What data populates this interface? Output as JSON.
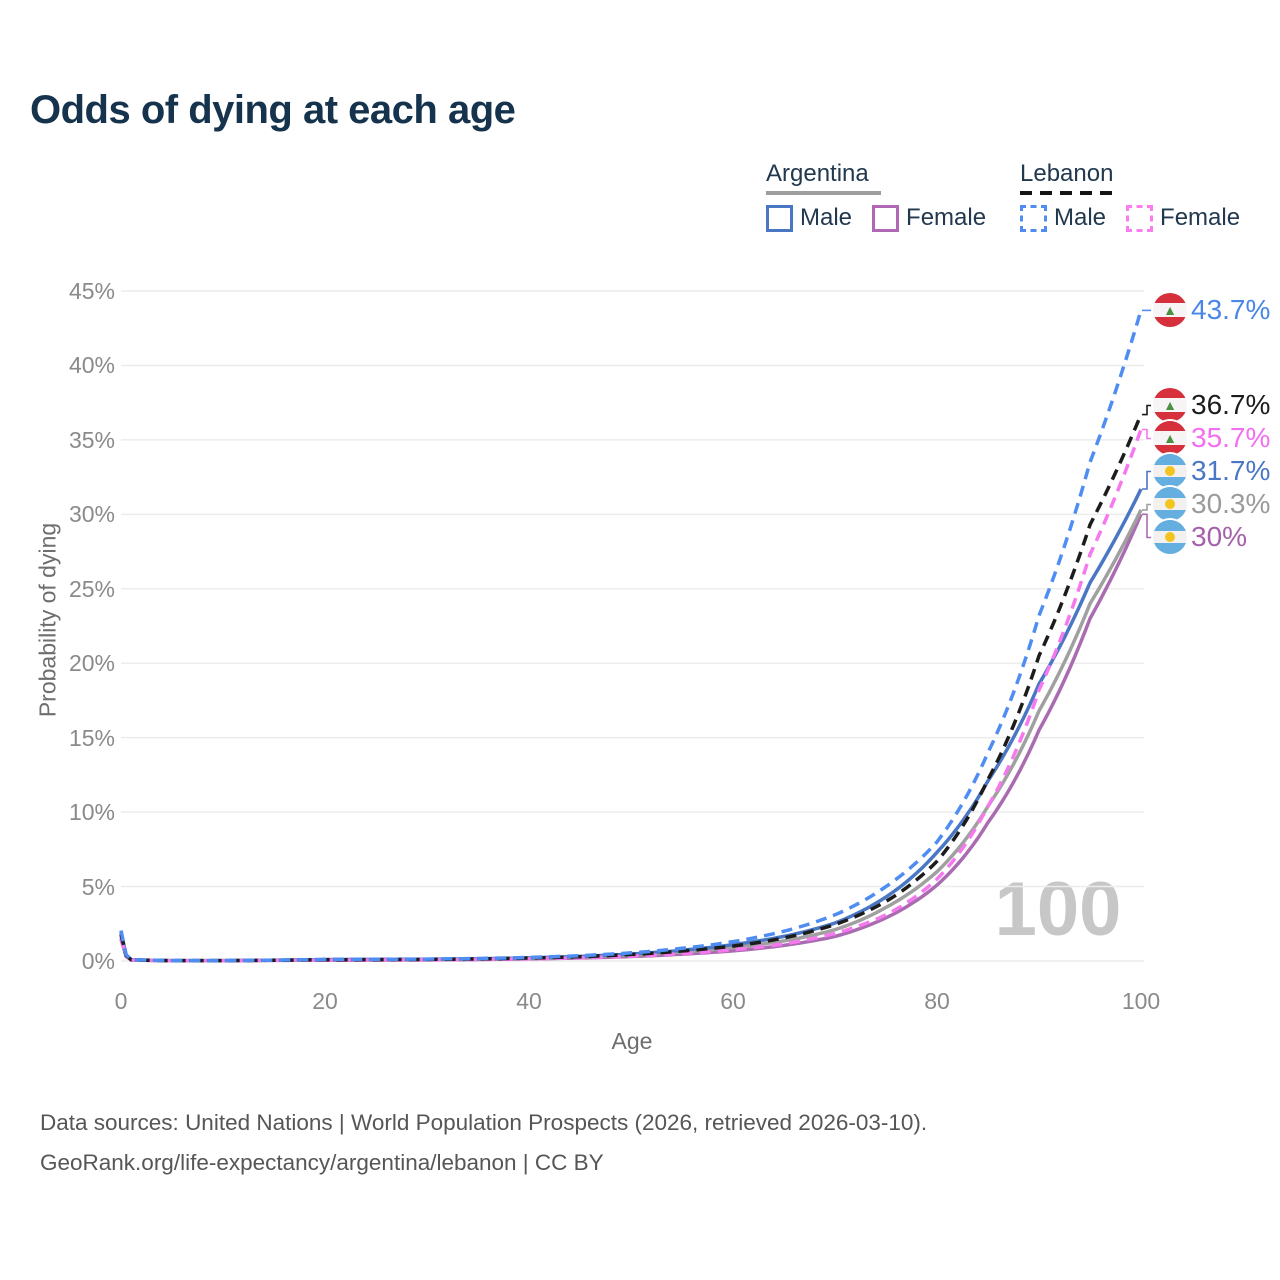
{
  "title": "Odds of dying at each age",
  "legend": {
    "groups": [
      {
        "label": "Argentina",
        "line_style": "solid",
        "line_color": "#9e9e9e",
        "items": [
          {
            "label": "Male",
            "color": "#4a77c4",
            "dash": false
          },
          {
            "label": "Female",
            "color": "#b068b4",
            "dash": false
          }
        ]
      },
      {
        "label": "Lebanon",
        "line_style": "dashed",
        "line_color": "#141414",
        "items": [
          {
            "label": "Male",
            "color": "#4f8df2",
            "dash": true
          },
          {
            "label": "Female",
            "color": "#fb7cee",
            "dash": true
          }
        ]
      }
    ]
  },
  "annotations": {
    "age_counter": "100"
  },
  "footer": {
    "line1": "Data sources: United Nations | World Population Prospects (2026, retrieved 2026-03-10).",
    "line2": "GeoRank.org/life-expectancy/argentina/lebanon | CC BY"
  },
  "chart_data": {
    "type": "line",
    "title": "Odds of dying at each age",
    "xlabel": "Age",
    "ylabel": "Probability of dying",
    "xlim": [
      0,
      100
    ],
    "ylim": [
      0,
      45
    ],
    "grid": "horizontal",
    "legend_position": "top-right",
    "x_ticks": [
      {
        "value": 0,
        "label": "0"
      },
      {
        "value": 20,
        "label": "20"
      },
      {
        "value": 40,
        "label": "40"
      },
      {
        "value": 60,
        "label": "60"
      },
      {
        "value": 80,
        "label": "80"
      },
      {
        "value": 100,
        "label": "100"
      }
    ],
    "y_ticks": [
      {
        "value": 0,
        "label": "0%"
      },
      {
        "value": 5,
        "label": "5%"
      },
      {
        "value": 10,
        "label": "10%"
      },
      {
        "value": 15,
        "label": "15%"
      },
      {
        "value": 20,
        "label": "20%"
      },
      {
        "value": 25,
        "label": "25%"
      },
      {
        "value": 30,
        "label": "30%"
      },
      {
        "value": 35,
        "label": "35%"
      },
      {
        "value": 40,
        "label": "40%"
      },
      {
        "value": 45,
        "label": "45%"
      }
    ],
    "x": [
      0,
      1,
      5,
      10,
      15,
      20,
      25,
      30,
      35,
      40,
      45,
      50,
      55,
      60,
      65,
      70,
      75,
      80,
      85,
      90,
      95,
      100
    ],
    "units": "percent probability of dying at each age",
    "series": [
      {
        "name": "Lebanon Male",
        "country": "Lebanon",
        "sex": "Male",
        "color": "#4f8df2",
        "dash": true,
        "flag": "lebanon",
        "end_label": "43.7%",
        "label_color": "#4a86e8",
        "values": [
          2.05,
          0.09,
          0.03,
          0.03,
          0.06,
          0.11,
          0.12,
          0.13,
          0.17,
          0.24,
          0.36,
          0.55,
          0.85,
          1.3,
          2.0,
          3.1,
          5.0,
          8.0,
          14.0,
          23.2,
          33.5,
          43.7
        ]
      },
      {
        "name": "Lebanon (both sexes)",
        "country": "Lebanon",
        "sex": "Both",
        "color": "#1c1c1c",
        "dash": true,
        "flag": "lebanon",
        "end_label": "36.7%",
        "label_color": "#1c1c1c",
        "values": [
          1.8,
          0.08,
          0.025,
          0.025,
          0.05,
          0.085,
          0.095,
          0.105,
          0.14,
          0.2,
          0.29,
          0.44,
          0.67,
          1.0,
          1.55,
          2.45,
          4.0,
          6.7,
          12.2,
          20.5,
          29.3,
          36.7
        ]
      },
      {
        "name": "Lebanon Female",
        "country": "Lebanon",
        "sex": "Female",
        "color": "#f678ee",
        "dash": true,
        "flag": "lebanon",
        "end_label": "35.7%",
        "label_color": "#f46ef2",
        "values": [
          1.55,
          0.07,
          0.02,
          0.02,
          0.04,
          0.06,
          0.07,
          0.08,
          0.11,
          0.15,
          0.22,
          0.33,
          0.5,
          0.75,
          1.15,
          1.85,
          3.1,
          5.5,
          10.4,
          18.2,
          27.3,
          35.7
        ]
      },
      {
        "name": "Argentina Male",
        "country": "Argentina",
        "sex": "Male",
        "color": "#4a77c4",
        "dash": false,
        "flag": "argentina",
        "end_label": "31.7%",
        "label_color": "#4a77c4",
        "values": [
          1.95,
          0.085,
          0.03,
          0.03,
          0.06,
          0.1,
          0.11,
          0.12,
          0.15,
          0.21,
          0.31,
          0.47,
          0.72,
          1.1,
          1.65,
          2.55,
          4.3,
          7.3,
          12.1,
          18.6,
          25.4,
          31.7
        ]
      },
      {
        "name": "Argentina (both sexes)",
        "country": "Argentina",
        "sex": "Both",
        "color": "#a0a0a0",
        "dash": false,
        "flag": "argentina",
        "end_label": "30.3%",
        "label_color": "#9a9a9a",
        "values": [
          1.7,
          0.075,
          0.025,
          0.025,
          0.05,
          0.08,
          0.09,
          0.1,
          0.13,
          0.18,
          0.26,
          0.39,
          0.6,
          0.9,
          1.35,
          2.1,
          3.6,
          6.0,
          10.4,
          16.8,
          24.0,
          30.3
        ]
      },
      {
        "name": "Argentina Female",
        "country": "Argentina",
        "sex": "Female",
        "color": "#a96cb0",
        "dash": false,
        "flag": "argentina",
        "end_label": "30%",
        "label_color": "#a660aa",
        "values": [
          1.45,
          0.065,
          0.02,
          0.02,
          0.04,
          0.05,
          0.06,
          0.07,
          0.1,
          0.14,
          0.2,
          0.3,
          0.46,
          0.68,
          1.05,
          1.65,
          2.9,
          5.1,
          9.3,
          15.5,
          23.0,
          30.0
        ]
      }
    ]
  }
}
